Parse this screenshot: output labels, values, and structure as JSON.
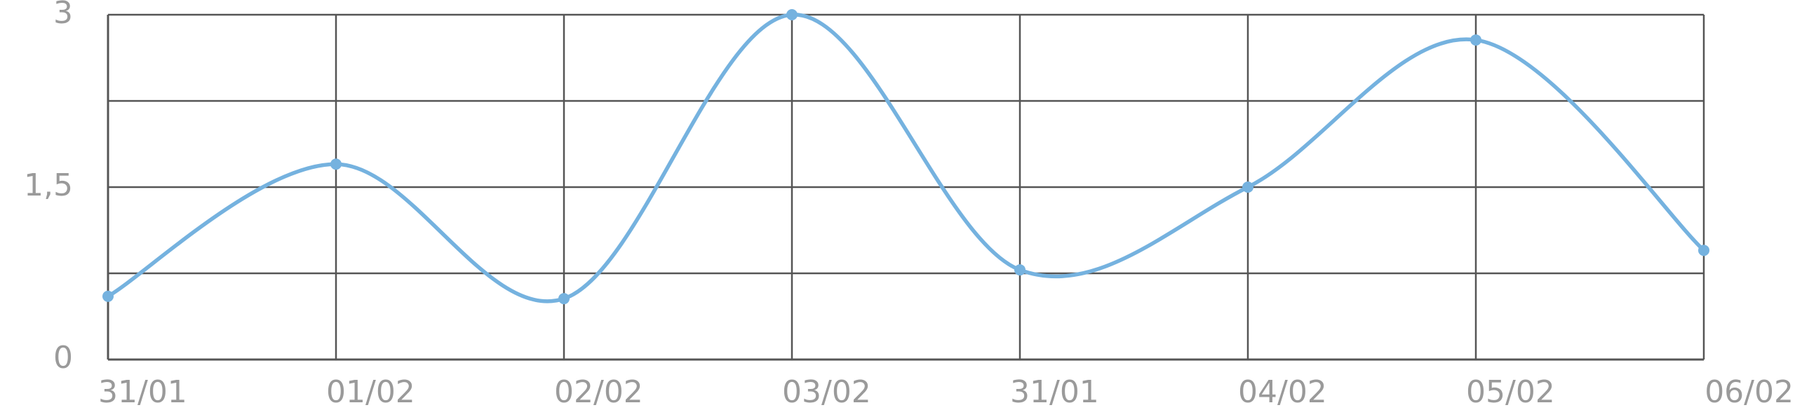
{
  "chart_data": {
    "type": "line",
    "title": "",
    "xlabel": "",
    "ylabel": "",
    "categories": [
      "31/01",
      "01/02",
      "02/02",
      "03/02",
      "31/01",
      "04/02",
      "05/02",
      "06/02"
    ],
    "series": [
      {
        "values": [
          0.55,
          1.7,
          0.53,
          3.0,
          0.78,
          1.5,
          2.78,
          0.95
        ]
      }
    ],
    "ylim": [
      0,
      3
    ],
    "yticks": [
      "0",
      "1,5",
      "3"
    ],
    "ytick_values": [
      0,
      1.5,
      3
    ],
    "ygrid_values": [
      0,
      0.75,
      1.5,
      2.25,
      3
    ],
    "grid": true,
    "smooth": true,
    "colors": {
      "line": "#75b2df",
      "grid": "#555555",
      "tick_text": "#9a9a9a"
    }
  }
}
